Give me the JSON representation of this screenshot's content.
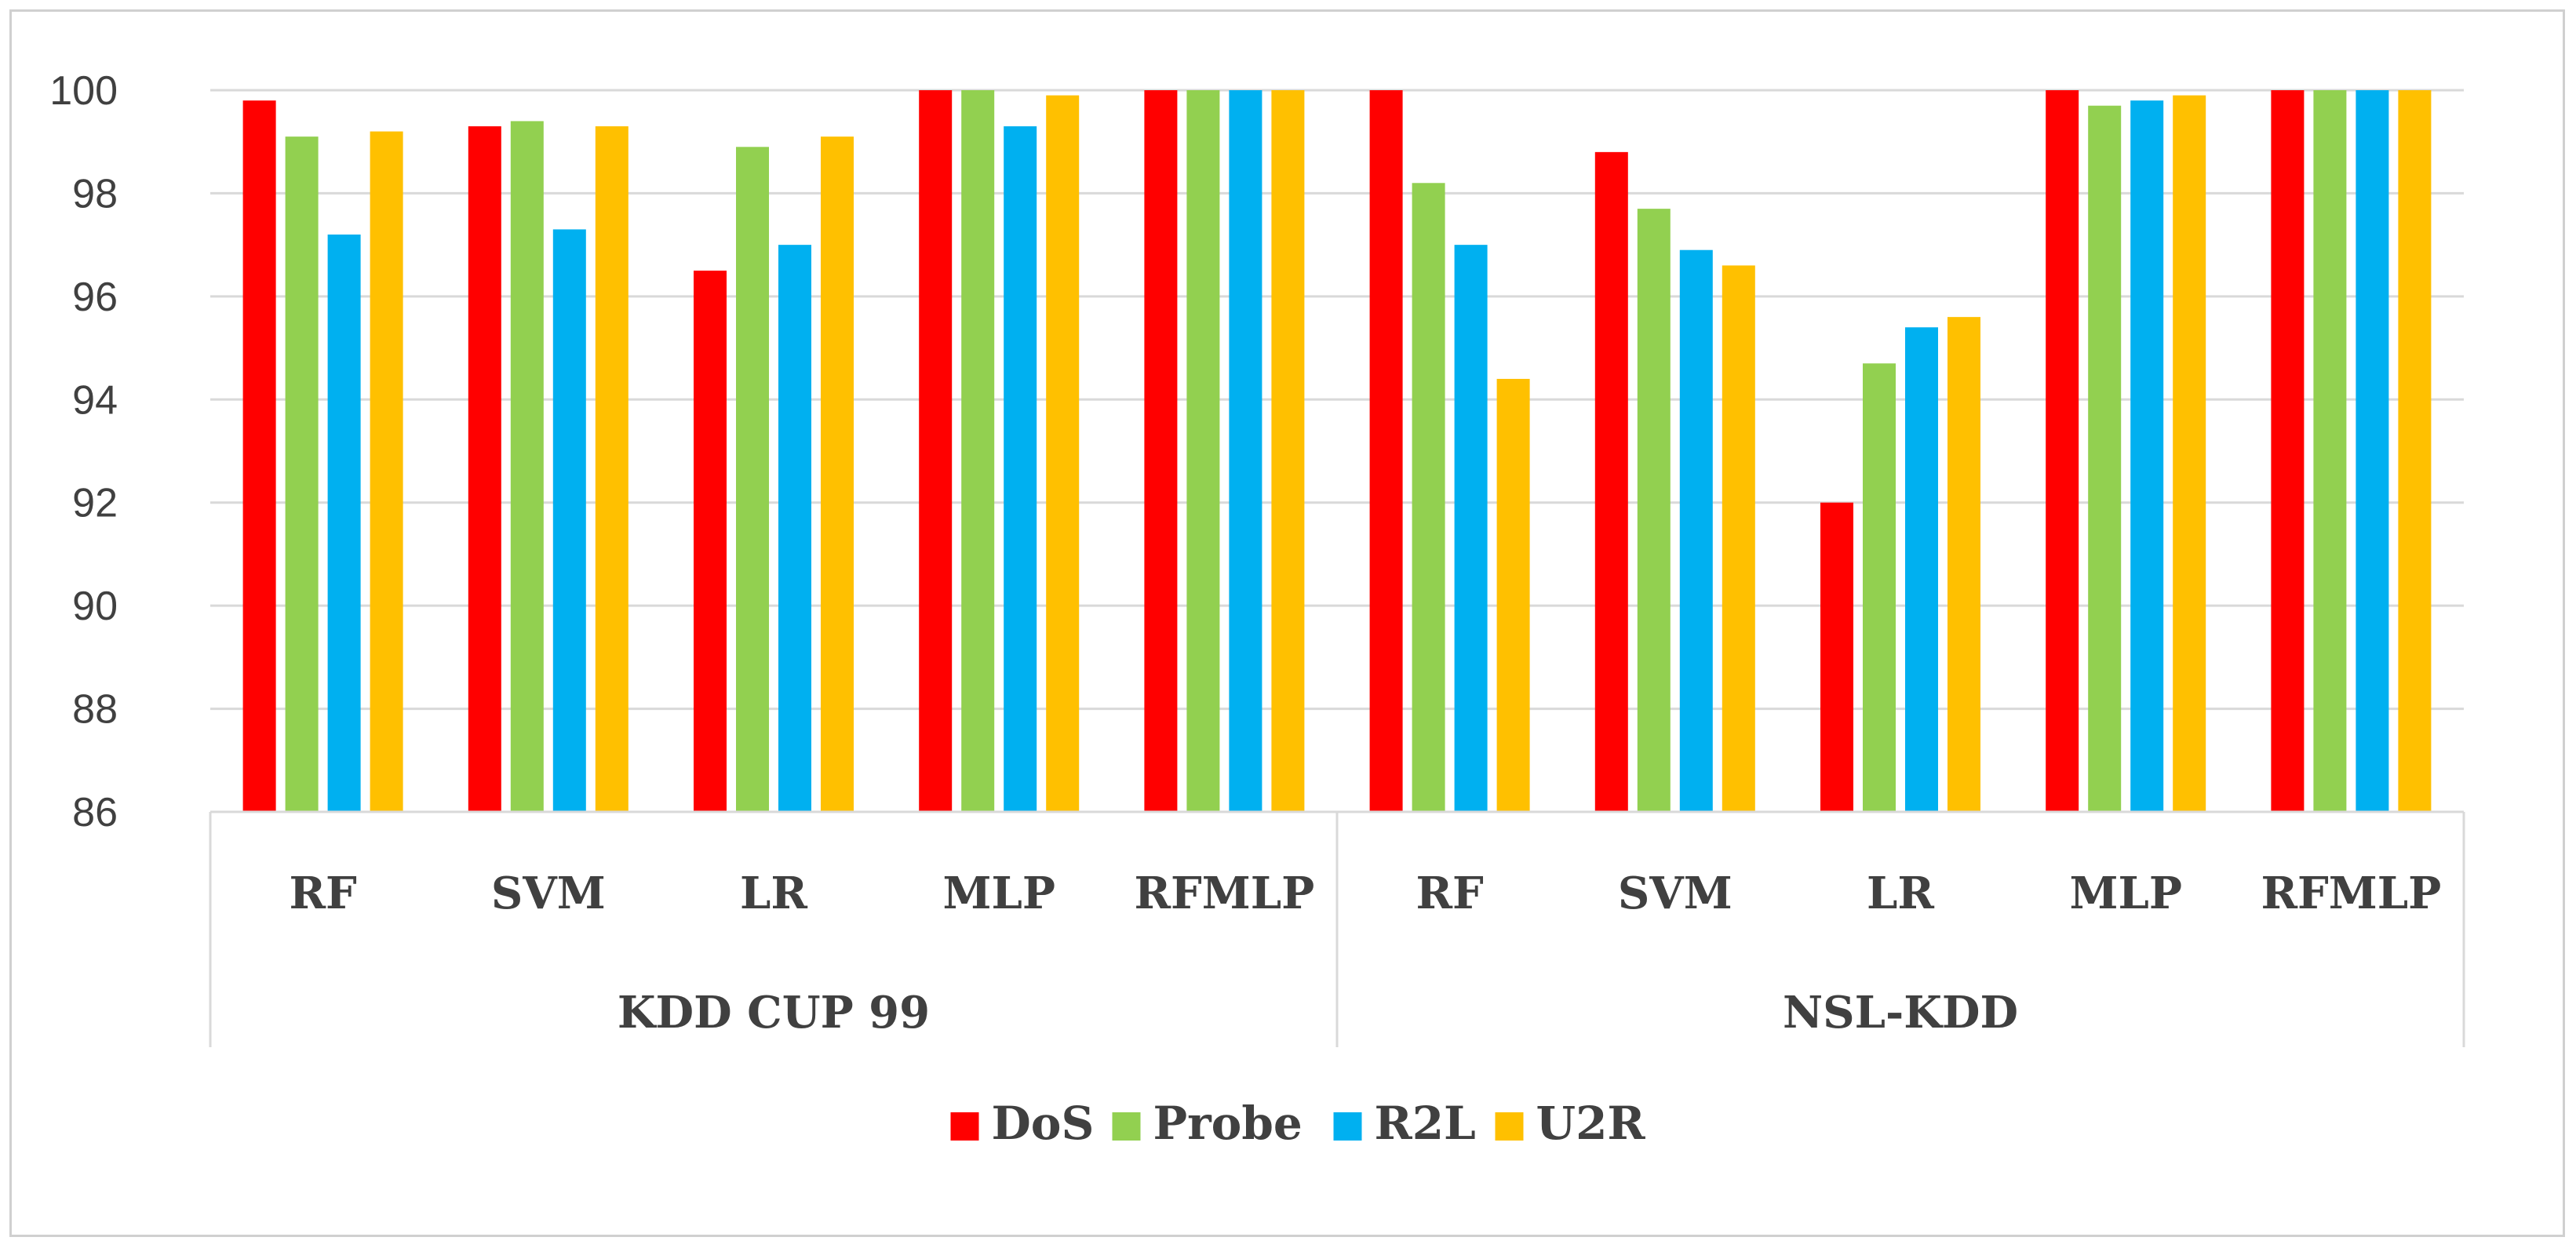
{
  "chart_data": {
    "type": "bar",
    "title": "",
    "xlabel": "",
    "ylabel": "",
    "ylim": [
      86,
      100
    ],
    "yticks": [
      "86",
      "88",
      "90",
      "92",
      "94",
      "96",
      "98",
      "100"
    ],
    "grid": true,
    "legend_position": "bottom",
    "groups": [
      {
        "label": "KDD CUP 99",
        "categories": [
          "RF",
          "SVM",
          "LR",
          "MLP",
          "RFMLP"
        ]
      },
      {
        "label": "NSL-KDD",
        "categories": [
          "RF",
          "SVM",
          "LR",
          "MLP",
          "RFMLP"
        ]
      }
    ],
    "categories": [
      "RF",
      "SVM",
      "LR",
      "MLP",
      "RFMLP",
      "RF",
      "SVM",
      "LR",
      "MLP",
      "RFMLP"
    ],
    "series": [
      {
        "name": "DoS",
        "color": "#ff0000",
        "values": [
          99.8,
          99.3,
          96.5,
          100,
          100,
          100,
          98.8,
          92.0,
          100,
          100
        ]
      },
      {
        "name": "Probe",
        "color": "#92d050",
        "values": [
          99.1,
          99.4,
          98.9,
          100,
          100,
          98.2,
          97.7,
          94.7,
          99.7,
          100
        ]
      },
      {
        "name": "R2L",
        "color": "#00b0f0",
        "values": [
          97.2,
          97.3,
          97.0,
          99.3,
          100,
          97.0,
          96.9,
          95.4,
          99.8,
          100
        ]
      },
      {
        "name": "U2R",
        "color": "#ffc000",
        "values": [
          99.2,
          99.3,
          99.1,
          99.9,
          100,
          94.4,
          96.6,
          95.6,
          99.9,
          100
        ]
      }
    ]
  }
}
